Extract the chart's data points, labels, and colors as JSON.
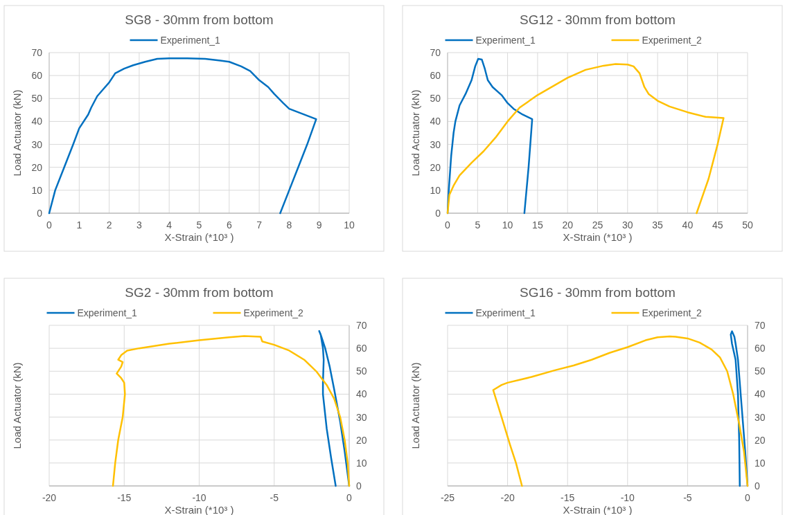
{
  "chart_data": [
    {
      "type": "line",
      "title": "SG8 - 30mm from bottom",
      "xlabel": "X-Strain (*10³ )",
      "ylabel": "Load Actuator (kN)",
      "xlim": [
        0,
        10
      ],
      "xticks": [
        0,
        1,
        2,
        3,
        4,
        5,
        6,
        7,
        8,
        9,
        10
      ],
      "ylim": [
        0,
        70
      ],
      "yticks": [
        0,
        10,
        20,
        30,
        40,
        50,
        60,
        70
      ],
      "grid": true,
      "legend": "top",
      "series": [
        {
          "name": "Experiment_1",
          "color": "#0070c0",
          "x": [
            0,
            0.2,
            0.5,
            0.8,
            1.0,
            1.3,
            1.4,
            1.6,
            1.8,
            2.0,
            2.2,
            2.5,
            2.8,
            3.2,
            3.6,
            4.0,
            4.6,
            5.2,
            5.7,
            6.0,
            6.4,
            6.7,
            7.0,
            7.3,
            7.5,
            7.8,
            8.0,
            8.3,
            8.6,
            8.9,
            8.6,
            8.3,
            8.0,
            7.7
          ],
          "values": [
            0,
            10,
            20,
            30,
            37,
            43,
            46,
            51,
            54,
            57,
            61,
            63,
            64.5,
            66,
            67.3,
            67.5,
            67.5,
            67.3,
            66.5,
            66,
            64,
            62,
            58,
            55,
            52,
            48,
            45.5,
            44,
            42.5,
            41,
            30,
            20,
            10,
            0
          ]
        }
      ]
    },
    {
      "type": "line",
      "title": "SG12 - 30mm from bottom",
      "xlabel": "X-Strain (*10³ )",
      "ylabel": "Load Actuator (kN)",
      "xlim": [
        0,
        50
      ],
      "xticks": [
        0,
        5,
        10,
        15,
        20,
        25,
        30,
        35,
        40,
        45,
        50
      ],
      "ylim": [
        0,
        70
      ],
      "yticks": [
        0,
        10,
        20,
        30,
        40,
        50,
        60,
        70
      ],
      "grid": true,
      "legend": "top",
      "series": [
        {
          "name": "Experiment_1",
          "color": "#0070c0",
          "x": [
            0,
            0.2,
            0.6,
            1,
            1.3,
            2,
            3,
            4,
            4.6,
            5.1,
            5.7,
            6.2,
            6.7,
            7.5,
            9,
            10,
            11,
            12.5,
            14.1,
            13.5,
            12.8
          ],
          "values": [
            0,
            10,
            25,
            35,
            40,
            47,
            52,
            58,
            64,
            67.3,
            67,
            63,
            58,
            55,
            51.5,
            48,
            45.5,
            43,
            41,
            20,
            0
          ]
        },
        {
          "name": "Experiment_2",
          "color": "#ffc000",
          "x": [
            0,
            0.3,
            1,
            2,
            4,
            6,
            8,
            10,
            12,
            15,
            18,
            20,
            23,
            26,
            28,
            30,
            31,
            32,
            32.8,
            33.5,
            35,
            37,
            40,
            43,
            46,
            45,
            43.5,
            41.5
          ],
          "values": [
            0,
            8,
            12,
            16.5,
            22,
            27,
            33,
            40,
            46,
            51.5,
            56,
            59,
            62.5,
            64.3,
            65,
            64.8,
            64,
            61,
            55,
            52,
            49,
            46.5,
            44,
            42,
            41.5,
            30,
            15,
            0
          ]
        }
      ]
    },
    {
      "type": "line",
      "title": "SG2 - 30mm from bottom",
      "xlabel": "X-Strain (*10³ )",
      "ylabel": "Load Actuator (kN)",
      "xlim": [
        -20,
        0
      ],
      "xticks": [
        -20,
        -15,
        -10,
        -5,
        0
      ],
      "ylim": [
        0,
        70
      ],
      "yticks": [
        0,
        10,
        20,
        30,
        40,
        50,
        60,
        70
      ],
      "grid": true,
      "legend": "top",
      "series": [
        {
          "name": "Experiment_1",
          "color": "#0070c0",
          "x": [
            0,
            -0.3,
            -0.6,
            -1.0,
            -1.3,
            -1.6,
            -1.85,
            -2.0,
            -1.9,
            -1.75,
            -1.7,
            -1.75,
            -1.75,
            -1.5,
            -1.2,
            -0.9
          ],
          "values": [
            0,
            15,
            28,
            42,
            52,
            60,
            65,
            67.5,
            66,
            60,
            55,
            45,
            40,
            25,
            12,
            0
          ]
        },
        {
          "name": "Experiment_2",
          "color": "#ffc000",
          "x": [
            0,
            -0.1,
            -0.3,
            -0.6,
            -1.0,
            -1.5,
            -2.2,
            -3.0,
            -4.0,
            -5.0,
            -5.8,
            -5.9,
            -7,
            -8,
            -10,
            -12,
            -14,
            -14.8,
            -15.2,
            -15.4,
            -15.1,
            -15.2,
            -15.5,
            -15.2,
            -15.0,
            -14.95,
            -15.1,
            -15.4,
            -15.6,
            -15.75
          ],
          "values": [
            0,
            10,
            20,
            30,
            38,
            44,
            50,
            55,
            59,
            61.5,
            63,
            65,
            65.3,
            64.8,
            63.5,
            62,
            60,
            59,
            57,
            55,
            54,
            52,
            49,
            47,
            45,
            40,
            30,
            20,
            10,
            0
          ]
        }
      ]
    },
    {
      "type": "line",
      "title": "SG16 - 30mm from bottom",
      "xlabel": "X-Strain (*10³ )",
      "ylabel": "Load Actuator (kN)",
      "xlim": [
        -25,
        0
      ],
      "xticks": [
        -25,
        -20,
        -15,
        -10,
        -5,
        0
      ],
      "ylim": [
        0,
        70
      ],
      "yticks": [
        0,
        10,
        20,
        30,
        40,
        50,
        60,
        70
      ],
      "grid": true,
      "legend": "top",
      "series": [
        {
          "name": "Experiment_1",
          "color": "#0070c0",
          "x": [
            0,
            -0.2,
            -0.5,
            -0.8,
            -1.0,
            -1.1,
            -1.3,
            -1.4,
            -1.3,
            -1.0,
            -0.8,
            -0.7,
            -0.65
          ],
          "values": [
            0,
            15,
            35,
            55,
            62,
            65,
            67.4,
            66,
            62,
            55,
            40,
            20,
            0
          ]
        },
        {
          "name": "Experiment_2",
          "color": "#ffc000",
          "x": [
            0,
            -0.3,
            -0.7,
            -1.2,
            -1.7,
            -2.3,
            -3,
            -4,
            -5,
            -6,
            -6.5,
            -7.5,
            -8.5,
            -10,
            -11.5,
            -13,
            -14.5,
            -16,
            -18,
            -20,
            -20.5,
            -21.2,
            -20.5,
            -19.8,
            -19.3,
            -18.8
          ],
          "values": [
            0,
            15,
            27,
            40,
            50,
            56,
            59.5,
            62.5,
            64.3,
            65,
            65.2,
            64.8,
            63.5,
            60.5,
            58,
            55,
            52.5,
            50.5,
            47.5,
            45,
            44,
            41.8,
            30,
            18,
            10,
            0
          ]
        }
      ]
    }
  ]
}
